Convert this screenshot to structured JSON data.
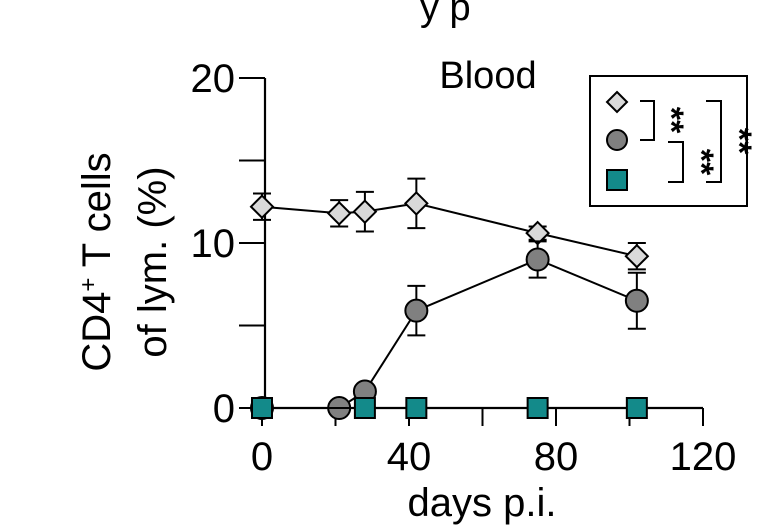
{
  "chart_data": {
    "type": "line",
    "title": "Blood",
    "header_fragment": "y p",
    "xlabel": "days p.i.",
    "ylabel_line1_main": "CD4",
    "ylabel_line1_sup": "+",
    "ylabel_line1_rest": " T cells",
    "ylabel_line2": "of lym. (%)",
    "xlim": [
      0,
      120
    ],
    "ylim": [
      0,
      20
    ],
    "xticks": [
      0,
      40,
      80,
      120
    ],
    "xticks_minor": [
      20,
      60,
      100
    ],
    "yticks": [
      0,
      10,
      20
    ],
    "yticks_minor": [
      5,
      15
    ],
    "series": [
      {
        "name": "series-diamond",
        "marker": "diamond",
        "color": "#d9d9d9",
        "x": [
          0,
          21,
          28,
          42,
          75,
          102
        ],
        "y": [
          12.2,
          11.8,
          11.9,
          12.4,
          10.6,
          9.2
        ],
        "err": [
          0.8,
          0.8,
          1.2,
          1.5,
          0.4,
          0.8
        ]
      },
      {
        "name": "series-circle",
        "marker": "circle",
        "color": "#808080",
        "x": [
          0,
          21,
          28,
          42,
          75,
          102
        ],
        "y": [
          0,
          0,
          1.0,
          5.9,
          9.0,
          6.5
        ],
        "err": [
          0,
          0,
          0,
          1.5,
          1.1,
          1.7
        ]
      },
      {
        "name": "series-square",
        "marker": "square",
        "color": "#138a8a",
        "x": [
          0,
          28,
          42,
          75,
          102
        ],
        "y": [
          0,
          0,
          0,
          0,
          0
        ],
        "err": [
          0,
          0,
          0,
          0,
          0
        ]
      }
    ],
    "significance": [
      "**",
      "**",
      "**"
    ]
  }
}
